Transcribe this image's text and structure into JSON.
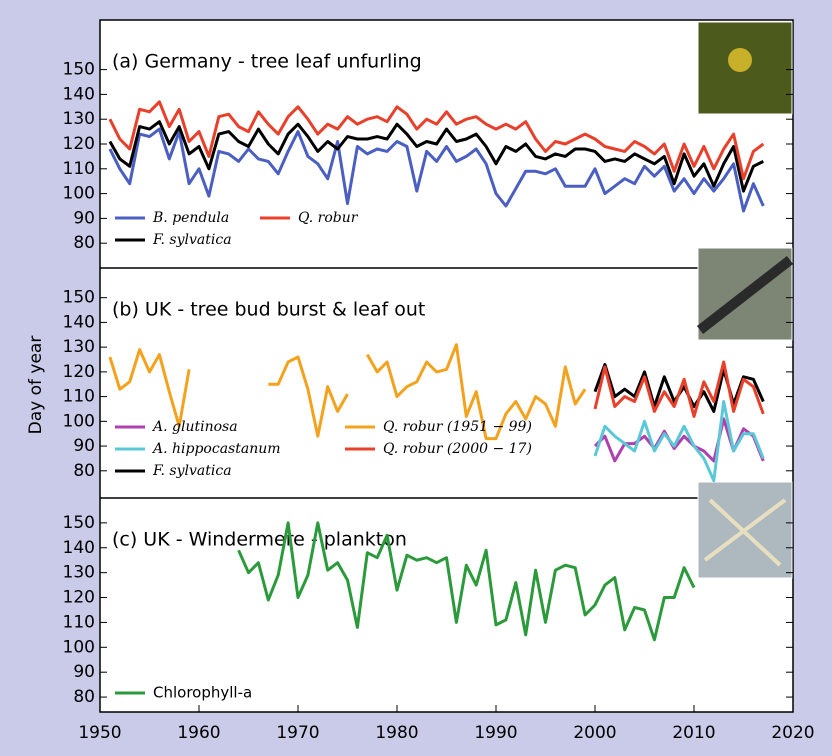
{
  "chart_data": [
    {
      "type": "line",
      "title": "(a) Germany - tree leaf unfurling",
      "x": [
        1951,
        1952,
        1953,
        1954,
        1955,
        1956,
        1957,
        1958,
        1959,
        1960,
        1961,
        1962,
        1963,
        1964,
        1965,
        1966,
        1967,
        1968,
        1969,
        1970,
        1971,
        1972,
        1973,
        1974,
        1975,
        1976,
        1977,
        1978,
        1979,
        1980,
        1981,
        1982,
        1983,
        1984,
        1985,
        1986,
        1987,
        1988,
        1989,
        1990,
        1991,
        1992,
        1993,
        1994,
        1995,
        1996,
        1997,
        1998,
        1999,
        2000,
        2001,
        2002,
        2003,
        2004,
        2005,
        2006,
        2007,
        2008,
        2009,
        2010,
        2011,
        2012,
        2013,
        2014,
        2015,
        2016,
        2017
      ],
      "series": [
        {
          "name": "B. pendula",
          "color": "#4a5fc1",
          "values": [
            118,
            110,
            104,
            124,
            123,
            126,
            114,
            125,
            104,
            110,
            99,
            117,
            116,
            113,
            118,
            114,
            113,
            108,
            117,
            125,
            115,
            112,
            106,
            121,
            96,
            119,
            116,
            118,
            117,
            121,
            119,
            101,
            117,
            113,
            119,
            113,
            115,
            118,
            112,
            100,
            95,
            102,
            109,
            109,
            108,
            110,
            103,
            103,
            103,
            110,
            100,
            103,
            106,
            104,
            111,
            107,
            111,
            101,
            106,
            100,
            106,
            101,
            106,
            112,
            93,
            104,
            95
          ]
        },
        {
          "name": "F. sylvatica",
          "color": "#000000",
          "values": [
            121,
            114,
            111,
            127,
            126,
            129,
            120,
            127,
            116,
            119,
            110,
            124,
            125,
            121,
            119,
            126,
            120,
            116,
            124,
            128,
            123,
            117,
            121,
            118,
            123,
            122,
            122,
            123,
            122,
            128,
            124,
            119,
            121,
            120,
            126,
            121,
            122,
            124,
            119,
            112,
            119,
            117,
            120,
            115,
            114,
            116,
            115,
            118,
            118,
            117,
            113,
            114,
            113,
            116,
            114,
            112,
            115,
            104,
            116,
            107,
            112,
            103,
            112,
            119,
            101,
            111,
            113
          ]
        },
        {
          "name": "Q. robur",
          "color": "#e8402a",
          "values": [
            130,
            122,
            118,
            134,
            133,
            137,
            127,
            134,
            121,
            125,
            115,
            131,
            132,
            127,
            125,
            133,
            128,
            124,
            131,
            135,
            130,
            124,
            128,
            126,
            131,
            128,
            130,
            131,
            129,
            135,
            132,
            126,
            130,
            128,
            133,
            128,
            130,
            131,
            128,
            126,
            128,
            126,
            129,
            122,
            117,
            121,
            120,
            122,
            124,
            122,
            119,
            118,
            117,
            121,
            119,
            116,
            120,
            109,
            120,
            111,
            119,
            110,
            118,
            124,
            106,
            117,
            120
          ]
        }
      ],
      "xlim": [
        1950,
        2020
      ],
      "ylim": [
        70,
        170
      ],
      "yticks": [
        80,
        90,
        100,
        110,
        120,
        130,
        140,
        150
      ]
    },
    {
      "type": "line",
      "title": "(b) UK - tree bud burst & leaf out",
      "ylabel": "Day of year",
      "x": [
        1951,
        1952,
        1953,
        1954,
        1955,
        1956,
        1957,
        1958,
        1959,
        1960,
        1961,
        1962,
        1963,
        1964,
        1965,
        1966,
        1967,
        1968,
        1969,
        1970,
        1971,
        1972,
        1973,
        1974,
        1975,
        1976,
        1977,
        1978,
        1979,
        1980,
        1981,
        1982,
        1983,
        1984,
        1985,
        1986,
        1987,
        1988,
        1989,
        1990,
        1991,
        1992,
        1993,
        1994,
        1995,
        1996,
        1997,
        1998,
        1999,
        2000,
        2001,
        2002,
        2003,
        2004,
        2005,
        2006,
        2007,
        2008,
        2009,
        2010,
        2011,
        2012,
        2013,
        2014,
        2015,
        2016,
        2017
      ],
      "series": [
        {
          "name": "A. glutinosa",
          "color": "#b040b0",
          "values": [
            null,
            null,
            null,
            null,
            null,
            null,
            null,
            null,
            null,
            null,
            null,
            null,
            null,
            null,
            null,
            null,
            null,
            null,
            null,
            null,
            null,
            null,
            null,
            null,
            null,
            null,
            null,
            null,
            null,
            null,
            null,
            null,
            null,
            null,
            null,
            null,
            null,
            null,
            null,
            null,
            null,
            null,
            null,
            null,
            null,
            null,
            null,
            null,
            null,
            90,
            94,
            84,
            91,
            91,
            94,
            89,
            96,
            89,
            94,
            90,
            88,
            84,
            101,
            88,
            97,
            94,
            84
          ]
        },
        {
          "name": "A. hippocastanum",
          "color": "#5bc8d8",
          "values": [
            null,
            null,
            null,
            null,
            null,
            null,
            null,
            null,
            null,
            null,
            null,
            null,
            null,
            null,
            null,
            null,
            null,
            null,
            null,
            null,
            null,
            null,
            null,
            null,
            null,
            null,
            null,
            null,
            null,
            null,
            null,
            null,
            null,
            null,
            null,
            null,
            null,
            null,
            null,
            null,
            null,
            null,
            null,
            null,
            null,
            null,
            null,
            null,
            null,
            86,
            98,
            94,
            91,
            88,
            100,
            88,
            95,
            90,
            98,
            90,
            85,
            76,
            108,
            88,
            95,
            95,
            85
          ]
        },
        {
          "name": "F. sylvatica",
          "color": "#000000",
          "values": [
            null,
            null,
            null,
            null,
            null,
            null,
            null,
            null,
            null,
            null,
            null,
            null,
            null,
            null,
            null,
            null,
            null,
            null,
            null,
            null,
            null,
            null,
            null,
            null,
            null,
            null,
            null,
            null,
            null,
            null,
            null,
            null,
            null,
            null,
            null,
            null,
            null,
            null,
            null,
            null,
            null,
            null,
            null,
            null,
            null,
            null,
            null,
            null,
            null,
            112,
            123,
            110,
            113,
            110,
            120,
            106,
            118,
            108,
            114,
            106,
            112,
            104,
            121,
            107,
            118,
            117,
            108
          ]
        },
        {
          "name": "Q. robur (1951 − 99)",
          "color": "#f4a21e",
          "values": [
            126,
            113,
            116,
            129,
            120,
            127,
            112,
            98,
            121,
            null,
            null,
            null,
            null,
            null,
            null,
            null,
            115,
            115,
            124,
            126,
            113,
            94,
            114,
            104,
            111,
            null,
            127,
            120,
            124,
            110,
            114,
            116,
            124,
            120,
            121,
            131,
            102,
            112,
            93,
            93,
            103,
            108,
            101,
            110,
            107,
            98,
            122,
            107,
            113,
            null,
            null,
            null,
            null,
            null,
            null,
            null,
            null,
            null,
            null,
            null,
            null,
            null,
            null,
            null,
            null,
            null,
            null
          ]
        },
        {
          "name": "Q. robur (2000 − 17)",
          "color": "#e8402a",
          "values": [
            null,
            null,
            null,
            null,
            null,
            null,
            null,
            null,
            null,
            null,
            null,
            null,
            null,
            null,
            null,
            null,
            null,
            null,
            null,
            null,
            null,
            null,
            null,
            null,
            null,
            null,
            null,
            null,
            null,
            null,
            null,
            null,
            null,
            null,
            null,
            null,
            null,
            null,
            null,
            null,
            null,
            null,
            null,
            null,
            null,
            null,
            null,
            null,
            null,
            105,
            122,
            106,
            110,
            108,
            118,
            104,
            112,
            106,
            117,
            102,
            116,
            108,
            124,
            104,
            117,
            114,
            103
          ]
        }
      ],
      "xlim": [
        1950,
        2020
      ],
      "ylim": [
        69,
        162
      ],
      "yticks": [
        80,
        90,
        100,
        110,
        120,
        130,
        140,
        150
      ]
    },
    {
      "type": "line",
      "title": "(c) UK - Windermere - plankton",
      "x": [
        1964,
        1965,
        1966,
        1967,
        1968,
        1969,
        1970,
        1971,
        1972,
        1973,
        1974,
        1975,
        1976,
        1977,
        1978,
        1979,
        1980,
        1981,
        1982,
        1983,
        1984,
        1985,
        1986,
        1987,
        1988,
        1989,
        1990,
        1991,
        1992,
        1993,
        1994,
        1995,
        1996,
        1997,
        1998,
        1999,
        2000,
        2001,
        2002,
        2003,
        2004,
        2005,
        2006,
        2007,
        2008,
        2009,
        2010
      ],
      "series": [
        {
          "name": "Chlorophyll-a",
          "color": "#2a9a3a",
          "values": [
            139,
            130,
            134,
            119,
            129,
            150,
            120,
            129,
            150,
            131,
            134,
            127,
            108,
            138,
            136,
            145,
            123,
            137,
            135,
            136,
            134,
            136,
            110,
            133,
            125,
            139,
            109,
            111,
            126,
            105,
            131,
            110,
            131,
            133,
            132,
            113,
            117,
            125,
            128,
            107,
            116,
            115,
            103,
            120,
            120,
            132,
            124
          ]
        }
      ],
      "xlim": [
        1950,
        2020
      ],
      "ylim": [
        74,
        160
      ],
      "yticks": [
        80,
        90,
        100,
        110,
        120,
        130,
        140,
        150
      ],
      "xticks": [
        1950,
        1960,
        1970,
        1980,
        1990,
        2000,
        2010,
        2020
      ]
    }
  ]
}
